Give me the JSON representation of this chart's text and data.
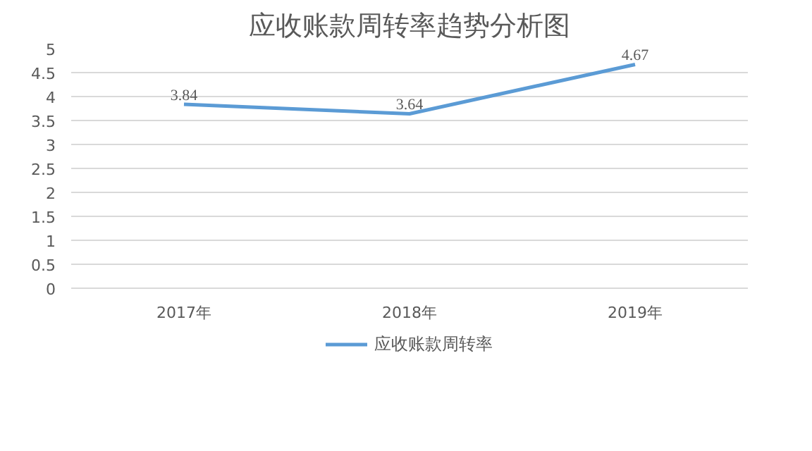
{
  "chart_data": {
    "type": "line",
    "title": "应收账款周转率趋势分析图",
    "categories": [
      "2017年",
      "2018年",
      "2019年"
    ],
    "series": [
      {
        "name": "应收账款周转率",
        "color": "#5b9bd5",
        "values": [
          3.84,
          3.64,
          4.67
        ]
      }
    ],
    "ylim": [
      0,
      5
    ],
    "yticks": [
      0,
      0.5,
      1,
      1.5,
      2,
      2.5,
      3,
      3.5,
      4,
      4.5,
      5
    ],
    "grid": "y",
    "legend": "bottom",
    "data_labels": true,
    "marker": "none",
    "line_style": "solid"
  }
}
